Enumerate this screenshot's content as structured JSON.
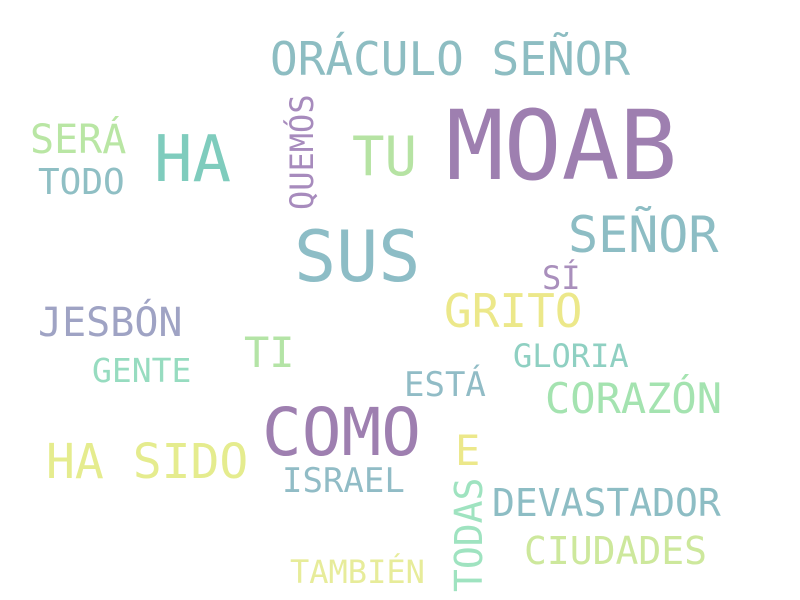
{
  "words": [
    {
      "text": "MOAB",
      "color": "#9e7fb0"
    },
    {
      "text": "ORÁCULO SEÑOR",
      "color": "#8dbdc2"
    },
    {
      "text": "HA",
      "color": "#7fccbd"
    },
    {
      "text": "TU",
      "color": "#b6e3a3"
    },
    {
      "text": "QUEMÓS",
      "color": "#a78bbd"
    },
    {
      "text": "SERÁ",
      "color": "#b9e6a4"
    },
    {
      "text": "TODO",
      "color": "#8fbfc4"
    },
    {
      "text": "SUS",
      "color": "#8dbdc6"
    },
    {
      "text": "SEÑOR",
      "color": "#8dbdc4"
    },
    {
      "text": "SÍ",
      "color": "#a98fbc"
    },
    {
      "text": "GRITO",
      "color": "#ece88a"
    },
    {
      "text": "JESBÓN",
      "color": "#9fa3c4"
    },
    {
      "text": "TI",
      "color": "#b4e4a6"
    },
    {
      "text": "GLORIA",
      "color": "#8fd0c2"
    },
    {
      "text": "GENTE",
      "color": "#97dcc0"
    },
    {
      "text": "ESTÁ",
      "color": "#91bcc6"
    },
    {
      "text": "CORAZÓN",
      "color": "#a4e3b0"
    },
    {
      "text": "COMO",
      "color": "#9e7fb0"
    },
    {
      "text": "E",
      "color": "#ece88a"
    },
    {
      "text": "HA SIDO",
      "color": "#e5ec8e"
    },
    {
      "text": "ISRAEL",
      "color": "#91bcc6"
    },
    {
      "text": "DEVASTADOR",
      "color": "#8dbdc4"
    },
    {
      "text": "TODAS",
      "color": "#9fe3c0"
    },
    {
      "text": "CIUDADES",
      "color": "#cde89c"
    },
    {
      "text": "TAMBIÉN",
      "color": "#e7ec9a"
    }
  ]
}
